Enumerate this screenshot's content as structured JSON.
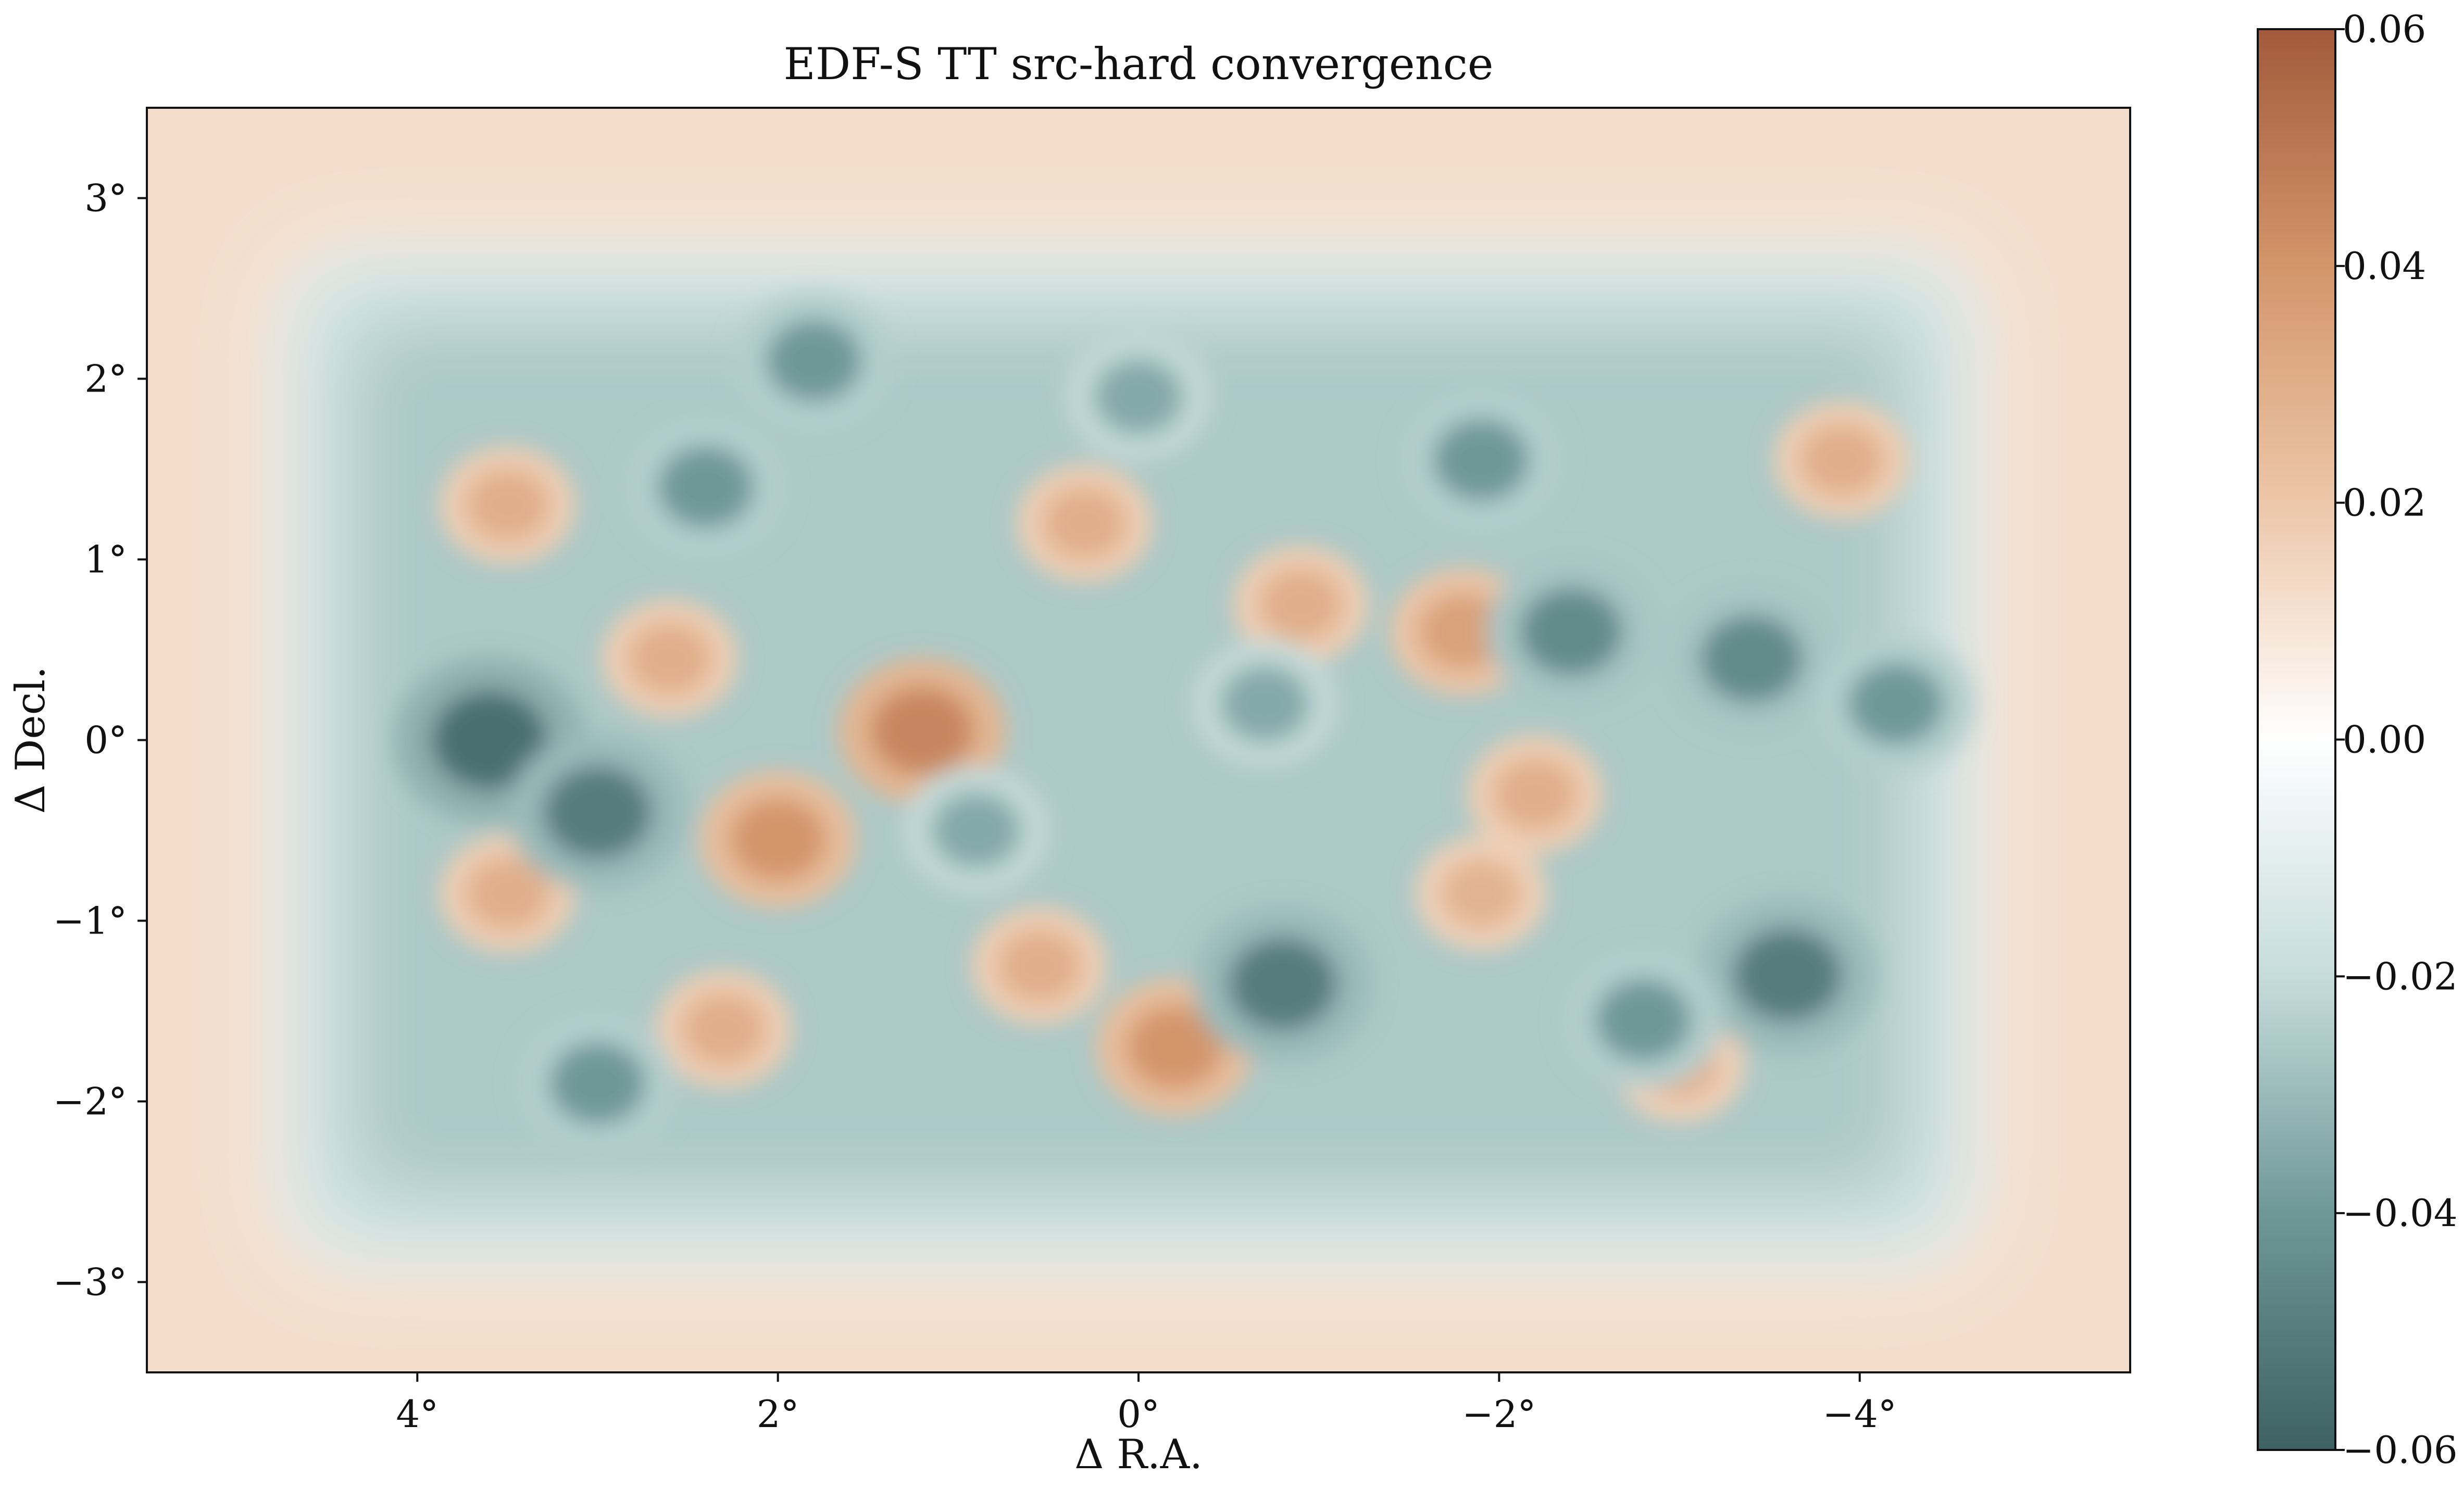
{
  "chart_data": {
    "type": "heatmap",
    "title": "EDF-S TT src-hard convergence",
    "xlabel": "Δ R.A.",
    "ylabel": "Δ Decl.",
    "xlim": [
      5.5,
      -5.5
    ],
    "ylim": [
      -3.5,
      3.5
    ],
    "x_ticks": [
      4,
      2,
      0,
      -2,
      -4
    ],
    "x_tick_labels": [
      "4°",
      "2°",
      "0°",
      "−2°",
      "−4°"
    ],
    "y_ticks": [
      3,
      2,
      1,
      0,
      -1,
      -2,
      -3
    ],
    "y_tick_labels": [
      "3°",
      "2°",
      "1°",
      "0°",
      "−1°",
      "−2°",
      "−3°"
    ],
    "colorbar": {
      "vmin": -0.06,
      "vmax": 0.06,
      "ticks": [
        0.06,
        0.04,
        0.02,
        0.0,
        -0.02,
        -0.04,
        -0.06
      ],
      "tick_labels": [
        "0.06",
        "0.04",
        "0.02",
        "0.00",
        "−0.02",
        "−0.04",
        "−0.06"
      ],
      "colors": [
        "#3e6264",
        "#6e9898",
        "#c6dcdb",
        "#ffffff",
        "#ecc7a9",
        "#d3956a",
        "#a25a3b"
      ]
    },
    "grid": false,
    "field_footprint": {
      "ra_range": [
        4.7,
        -4.6
      ],
      "dec_range": [
        -2.85,
        2.65
      ]
    },
    "features": [
      {
        "kind": "positive",
        "ra": 1.2,
        "dec": 0.05,
        "value": 0.045
      },
      {
        "kind": "positive",
        "ra": 2.0,
        "dec": -0.55,
        "value": 0.04
      },
      {
        "kind": "positive",
        "ra": -0.2,
        "dec": -1.7,
        "value": 0.04
      },
      {
        "kind": "positive",
        "ra": 2.6,
        "dec": 0.45,
        "value": 0.03
      },
      {
        "kind": "positive",
        "ra": 3.5,
        "dec": 1.3,
        "value": 0.03
      },
      {
        "kind": "positive",
        "ra": -1.8,
        "dec": 0.6,
        "value": 0.035
      },
      {
        "kind": "positive",
        "ra": 0.3,
        "dec": 1.2,
        "value": 0.03
      },
      {
        "kind": "positive",
        "ra": -0.9,
        "dec": 0.75,
        "value": 0.03
      },
      {
        "kind": "positive",
        "ra": -3.9,
        "dec": 1.55,
        "value": 0.03
      },
      {
        "kind": "positive",
        "ra": 2.3,
        "dec": -1.6,
        "value": 0.03
      },
      {
        "kind": "positive",
        "ra": 0.55,
        "dec": -1.25,
        "value": 0.03
      },
      {
        "kind": "positive",
        "ra": -2.2,
        "dec": -0.3,
        "value": 0.03
      },
      {
        "kind": "positive",
        "ra": 3.5,
        "dec": -0.85,
        "value": 0.03
      },
      {
        "kind": "positive",
        "ra": -1.9,
        "dec": -0.85,
        "value": 0.028
      },
      {
        "kind": "positive",
        "ra": -3.0,
        "dec": -1.8,
        "value": 0.028
      },
      {
        "kind": "negative",
        "ra": 3.6,
        "dec": 0.0,
        "value": -0.055
      },
      {
        "kind": "negative",
        "ra": 3.0,
        "dec": -0.4,
        "value": -0.05
      },
      {
        "kind": "negative",
        "ra": -0.8,
        "dec": -1.35,
        "value": -0.05
      },
      {
        "kind": "negative",
        "ra": -3.6,
        "dec": -1.3,
        "value": -0.05
      },
      {
        "kind": "negative",
        "ra": -2.4,
        "dec": 0.6,
        "value": -0.045
      },
      {
        "kind": "negative",
        "ra": -3.4,
        "dec": 0.45,
        "value": -0.045
      },
      {
        "kind": "negative",
        "ra": 2.4,
        "dec": 1.4,
        "value": -0.04
      },
      {
        "kind": "negative",
        "ra": -1.9,
        "dec": 1.55,
        "value": -0.04
      },
      {
        "kind": "negative",
        "ra": 1.8,
        "dec": 2.1,
        "value": -0.04
      },
      {
        "kind": "negative",
        "ra": 0.0,
        "dec": 1.9,
        "value": -0.035
      },
      {
        "kind": "negative",
        "ra": -2.8,
        "dec": -1.55,
        "value": -0.04
      },
      {
        "kind": "negative",
        "ra": 0.9,
        "dec": -0.5,
        "value": -0.035
      },
      {
        "kind": "negative",
        "ra": -0.7,
        "dec": 0.2,
        "value": -0.035
      },
      {
        "kind": "negative",
        "ra": 3.0,
        "dec": -1.9,
        "value": -0.04
      },
      {
        "kind": "negative",
        "ra": -4.2,
        "dec": 0.2,
        "value": -0.04
      }
    ]
  }
}
